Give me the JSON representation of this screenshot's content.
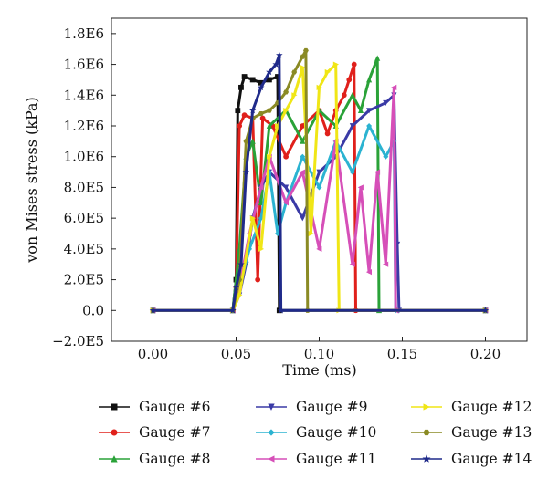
{
  "chart_data": {
    "type": "line",
    "xlabel": "Time (ms)",
    "ylabel": "von Mises stress (kPa)",
    "xlim": [
      -0.025,
      0.225
    ],
    "ylim": [
      -200000,
      1900000
    ],
    "x_ticks": [
      0.0,
      0.05,
      0.1,
      0.15,
      0.2
    ],
    "x_tick_labels": [
      "0.00",
      "0.05",
      "0.10",
      "0.15",
      "0.20"
    ],
    "y_ticks": [
      -200000,
      0,
      200000,
      400000,
      600000,
      800000,
      1000000,
      1200000,
      1400000,
      1600000,
      1800000
    ],
    "y_tick_labels": [
      "−2.0E5",
      "0.0",
      "2.0E5",
      "4.0E5",
      "6.0E5",
      "8.0E5",
      "1.0E6",
      "1.2E6",
      "1.4E6",
      "1.6E6",
      "1.8E6"
    ],
    "grid": false,
    "legend_position": "bottom",
    "series": [
      {
        "name": "Gauge #6",
        "color": "#111111",
        "marker": "square",
        "points": [
          [
            0,
            0
          ],
          [
            0.048,
            0
          ],
          [
            0.05,
            200000
          ],
          [
            0.051,
            1300000
          ],
          [
            0.053,
            1450000
          ],
          [
            0.055,
            1520000
          ],
          [
            0.06,
            1500000
          ],
          [
            0.065,
            1480000
          ],
          [
            0.07,
            1500000
          ],
          [
            0.075,
            1520000
          ],
          [
            0.076,
            0
          ],
          [
            0.2,
            0
          ]
        ]
      },
      {
        "name": "Gauge #7",
        "color": "#e0201b",
        "marker": "circle",
        "points": [
          [
            0,
            0
          ],
          [
            0.048,
            0
          ],
          [
            0.05,
            150000
          ],
          [
            0.052,
            1200000
          ],
          [
            0.055,
            1270000
          ],
          [
            0.06,
            1250000
          ],
          [
            0.063,
            200000
          ],
          [
            0.066,
            1250000
          ],
          [
            0.072,
            1200000
          ],
          [
            0.08,
            1000000
          ],
          [
            0.09,
            1200000
          ],
          [
            0.1,
            1300000
          ],
          [
            0.105,
            1150000
          ],
          [
            0.11,
            1300000
          ],
          [
            0.115,
            1400000
          ],
          [
            0.118,
            1500000
          ],
          [
            0.121,
            1600000
          ],
          [
            0.122,
            0
          ],
          [
            0.2,
            0
          ]
        ]
      },
      {
        "name": "Gauge #8",
        "color": "#2aa238",
        "marker": "triangle-up",
        "points": [
          [
            0,
            0
          ],
          [
            0.048,
            0
          ],
          [
            0.052,
            400000
          ],
          [
            0.056,
            1000000
          ],
          [
            0.06,
            1100000
          ],
          [
            0.065,
            700000
          ],
          [
            0.07,
            1200000
          ],
          [
            0.08,
            1300000
          ],
          [
            0.09,
            1100000
          ],
          [
            0.1,
            1300000
          ],
          [
            0.11,
            1200000
          ],
          [
            0.12,
            1400000
          ],
          [
            0.125,
            1300000
          ],
          [
            0.13,
            1500000
          ],
          [
            0.135,
            1640000
          ],
          [
            0.136,
            0
          ],
          [
            0.2,
            0
          ]
        ]
      },
      {
        "name": "Gauge #9",
        "color": "#3a3aa6",
        "marker": "triangle-down",
        "points": [
          [
            0,
            0
          ],
          [
            0.048,
            0
          ],
          [
            0.052,
            100000
          ],
          [
            0.056,
            300000
          ],
          [
            0.06,
            600000
          ],
          [
            0.065,
            800000
          ],
          [
            0.07,
            900000
          ],
          [
            0.08,
            800000
          ],
          [
            0.09,
            600000
          ],
          [
            0.1,
            900000
          ],
          [
            0.11,
            1000000
          ],
          [
            0.12,
            1200000
          ],
          [
            0.13,
            1300000
          ],
          [
            0.14,
            1350000
          ],
          [
            0.145,
            1400000
          ],
          [
            0.147,
            430000
          ],
          [
            0.148,
            0
          ],
          [
            0.2,
            0
          ]
        ]
      },
      {
        "name": "Gauge #10",
        "color": "#2bb3d1",
        "marker": "diamond",
        "points": [
          [
            0,
            0
          ],
          [
            0.048,
            0
          ],
          [
            0.052,
            150000
          ],
          [
            0.058,
            400000
          ],
          [
            0.065,
            600000
          ],
          [
            0.07,
            900000
          ],
          [
            0.075,
            500000
          ],
          [
            0.08,
            700000
          ],
          [
            0.09,
            1000000
          ],
          [
            0.1,
            800000
          ],
          [
            0.11,
            1100000
          ],
          [
            0.12,
            900000
          ],
          [
            0.13,
            1200000
          ],
          [
            0.14,
            1000000
          ],
          [
            0.145,
            1100000
          ],
          [
            0.146,
            0
          ],
          [
            0.2,
            0
          ]
        ]
      },
      {
        "name": "Gauge #11",
        "color": "#d64fb8",
        "marker": "triangle-left",
        "points": [
          [
            0,
            0
          ],
          [
            0.048,
            0
          ],
          [
            0.052,
            150000
          ],
          [
            0.058,
            500000
          ],
          [
            0.065,
            800000
          ],
          [
            0.07,
            1000000
          ],
          [
            0.08,
            700000
          ],
          [
            0.09,
            900000
          ],
          [
            0.1,
            400000
          ],
          [
            0.11,
            1100000
          ],
          [
            0.12,
            300000
          ],
          [
            0.125,
            800000
          ],
          [
            0.13,
            250000
          ],
          [
            0.135,
            900000
          ],
          [
            0.14,
            300000
          ],
          [
            0.145,
            1450000
          ],
          [
            0.146,
            0
          ],
          [
            0.2,
            0
          ]
        ]
      },
      {
        "name": "Gauge #12",
        "color": "#f0e616",
        "marker": "triangle-right",
        "points": [
          [
            0,
            0
          ],
          [
            0.048,
            0
          ],
          [
            0.052,
            100000
          ],
          [
            0.06,
            600000
          ],
          [
            0.065,
            400000
          ],
          [
            0.07,
            1000000
          ],
          [
            0.075,
            1200000
          ],
          [
            0.08,
            1300000
          ],
          [
            0.085,
            1400000
          ],
          [
            0.09,
            1580000
          ],
          [
            0.095,
            500000
          ],
          [
            0.1,
            1450000
          ],
          [
            0.105,
            1550000
          ],
          [
            0.11,
            1600000
          ],
          [
            0.112,
            0
          ],
          [
            0.2,
            0
          ]
        ]
      },
      {
        "name": "Gauge #13",
        "color": "#8a8a24",
        "marker": "hexagon",
        "points": [
          [
            0,
            0
          ],
          [
            0.048,
            0
          ],
          [
            0.052,
            200000
          ],
          [
            0.056,
            1100000
          ],
          [
            0.06,
            1250000
          ],
          [
            0.065,
            1280000
          ],
          [
            0.07,
            1300000
          ],
          [
            0.075,
            1350000
          ],
          [
            0.08,
            1420000
          ],
          [
            0.085,
            1550000
          ],
          [
            0.09,
            1650000
          ],
          [
            0.092,
            1690000
          ],
          [
            0.093,
            0
          ],
          [
            0.2,
            0
          ]
        ]
      },
      {
        "name": "Gauge #14",
        "color": "#1f2a8a",
        "marker": "star",
        "points": [
          [
            0,
            0
          ],
          [
            0.048,
            0
          ],
          [
            0.05,
            150000
          ],
          [
            0.053,
            300000
          ],
          [
            0.056,
            900000
          ],
          [
            0.06,
            1300000
          ],
          [
            0.065,
            1450000
          ],
          [
            0.07,
            1550000
          ],
          [
            0.074,
            1600000
          ],
          [
            0.076,
            1660000
          ],
          [
            0.077,
            0
          ],
          [
            0.2,
            0
          ]
        ]
      }
    ]
  }
}
